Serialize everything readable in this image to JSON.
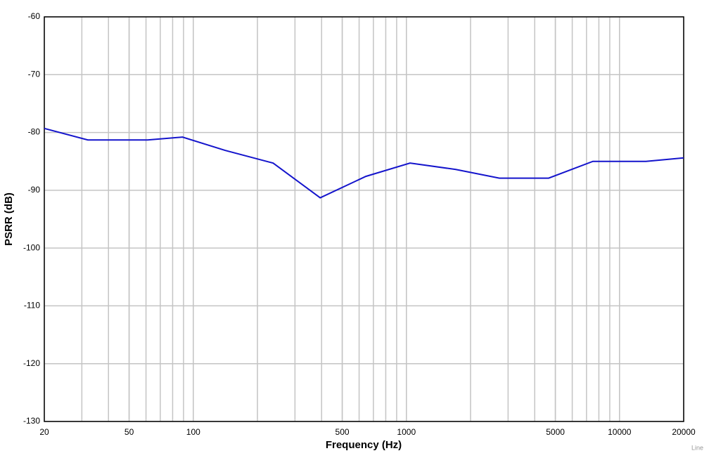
{
  "chart_data": {
    "type": "line",
    "x_label": "Frequency (Hz)",
    "y_label": "PSRR (dB)",
    "watermark": "Line",
    "x": [
      20,
      32,
      61,
      89,
      141,
      237,
      394,
      645,
      1040,
      1706,
      2730,
      4650,
      7500,
      13300,
      20000
    ],
    "values": [
      -79.3,
      -81.3,
      -81.3,
      -80.8,
      -83.1,
      -85.3,
      -91.3,
      -87.6,
      -85.3,
      -86.4,
      -87.9,
      -87.9,
      -85.0,
      -85.0,
      -84.4
    ],
    "color": "#1414cc",
    "xlim": [
      20,
      20000
    ],
    "xticks": [
      20,
      50,
      100,
      500,
      1000,
      5000,
      10000,
      20000
    ],
    "x_log": true,
    "ylim": [
      -130,
      -60
    ],
    "yticks": [
      -130,
      -120,
      -110,
      -100,
      -90,
      -80,
      -70,
      -60
    ],
    "grid": true,
    "minor_grid": true
  }
}
